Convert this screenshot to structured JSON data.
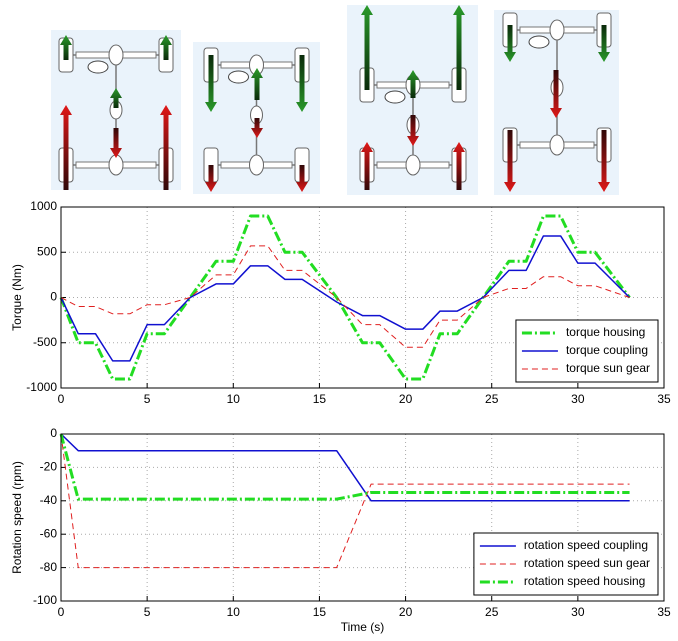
{
  "chart_data": [
    {
      "type": "line",
      "ylabel": "Torque (Nm)",
      "x": [
        0,
        1,
        2,
        3,
        4,
        5,
        6,
        7.5,
        9,
        10,
        11,
        12,
        13,
        14,
        16,
        17.5,
        18.5,
        20,
        21,
        22,
        23,
        24.5,
        26,
        27,
        28,
        29,
        30,
        31,
        33
      ],
      "series": [
        {
          "name": "torque housing",
          "color": "#22dd22",
          "linestyle": "dashdot",
          "linewidth": 3,
          "values": [
            0,
            -500,
            -500,
            -900,
            -900,
            -400,
            -400,
            0,
            400,
            400,
            900,
            900,
            500,
            500,
            0,
            -500,
            -500,
            -900,
            -900,
            -400,
            -400,
            0,
            400,
            400,
            900,
            900,
            500,
            500,
            0
          ]
        },
        {
          "name": "torque coupling",
          "color": "#1010d0",
          "linestyle": "solid",
          "linewidth": 1.5,
          "values": [
            0,
            -400,
            -400,
            -700,
            -700,
            -300,
            -300,
            0,
            150,
            150,
            350,
            350,
            200,
            200,
            -50,
            -200,
            -200,
            -350,
            -350,
            -150,
            -150,
            0,
            300,
            300,
            680,
            680,
            380,
            380,
            0
          ]
        },
        {
          "name": "torque sun gear",
          "color": "#e02020",
          "linestyle": "dashed",
          "linewidth": 1,
          "values": [
            0,
            -100,
            -100,
            -180,
            -180,
            -80,
            -80,
            0,
            250,
            250,
            570,
            570,
            300,
            300,
            0,
            -300,
            -300,
            -550,
            -550,
            -250,
            -250,
            0,
            100,
            100,
            230,
            230,
            130,
            130,
            0
          ]
        }
      ],
      "xlim": [
        0,
        35
      ],
      "xticks": [
        0,
        5,
        10,
        15,
        20,
        25,
        30,
        35
      ],
      "ylim": [
        -1000,
        1000
      ],
      "yticks": [
        -1000,
        -500,
        0,
        500,
        1000
      ],
      "grid": true,
      "legend": "lower right"
    },
    {
      "type": "line",
      "ylabel": "Rotation speed (rpm)",
      "xlabel": "Time (s)",
      "x": [
        0,
        1,
        16,
        18,
        33
      ],
      "series": [
        {
          "name": "rotation speed coupling",
          "color": "#1010d0",
          "linestyle": "solid",
          "linewidth": 1.5,
          "values": [
            0,
            -10,
            -10,
            -40,
            -40
          ]
        },
        {
          "name": "rotation speed sun gear",
          "color": "#e02020",
          "linestyle": "dashed",
          "linewidth": 1,
          "values": [
            0,
            -80,
            -80,
            -30,
            -30
          ]
        },
        {
          "name": "rotation speed housing",
          "color": "#22dd22",
          "linestyle": "dashdot",
          "linewidth": 3,
          "values": [
            0,
            -39,
            -39,
            -35,
            -35
          ]
        }
      ],
      "xlim": [
        0,
        35
      ],
      "xticks": [
        0,
        5,
        10,
        15,
        20,
        25,
        30,
        35
      ],
      "ylim": [
        -100,
        0
      ],
      "yticks": [
        -100,
        -80,
        -60,
        -40,
        -20,
        0
      ],
      "grid": true,
      "legend": "lower right"
    }
  ]
}
